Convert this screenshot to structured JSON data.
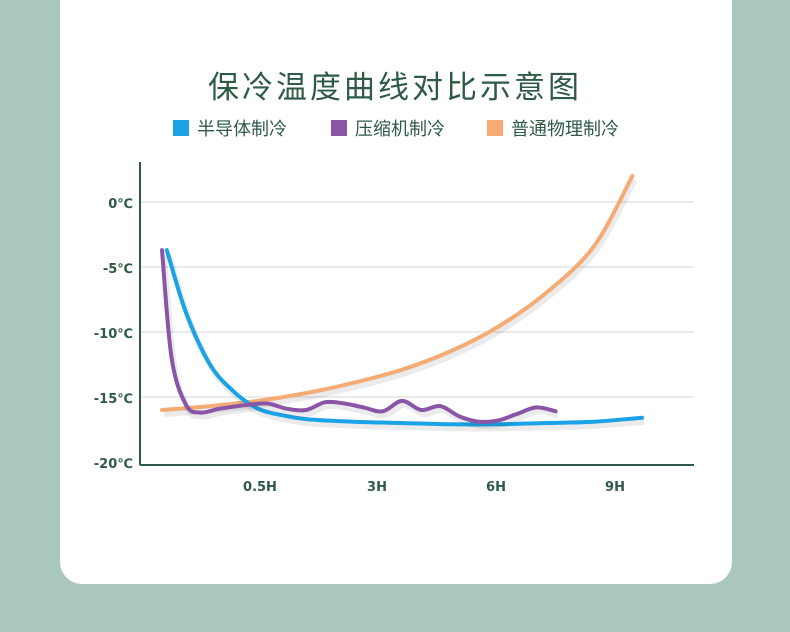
{
  "chart_data": {
    "type": "line",
    "title": "保冷温度曲线对比示意图",
    "y_ticks": [
      "0℃",
      "-5℃",
      "-10℃",
      "-15℃",
      "-20℃"
    ],
    "x_ticks": [
      "0.5H",
      "3H",
      "6H",
      "9H"
    ],
    "ylim": [
      -20,
      3
    ],
    "grid": true,
    "legend_position": "top",
    "series": [
      {
        "name": "半导体制冷",
        "color": "#1aa3e6",
        "points": [
          [
            0.1,
            -3.7
          ],
          [
            0.5,
            -8.5
          ],
          [
            1.0,
            -12.5
          ],
          [
            1.5,
            -14.6
          ],
          [
            2.0,
            -15.9
          ],
          [
            2.5,
            -16.4
          ],
          [
            3.0,
            -16.7
          ],
          [
            4.0,
            -16.9
          ],
          [
            5.0,
            -17.0
          ],
          [
            6.0,
            -17.1
          ],
          [
            7.0,
            -17.1
          ],
          [
            8.0,
            -17.0
          ],
          [
            9.0,
            -16.9
          ],
          [
            10.0,
            -16.6
          ]
        ]
      },
      {
        "name": "压缩机制冷",
        "color": "#8b55a7",
        "points": [
          [
            0.0,
            -3.7
          ],
          [
            0.2,
            -12.0
          ],
          [
            0.5,
            -15.6
          ],
          [
            0.8,
            -16.2
          ],
          [
            1.2,
            -15.9
          ],
          [
            1.8,
            -15.6
          ],
          [
            2.2,
            -15.5
          ],
          [
            2.6,
            -15.9
          ],
          [
            3.0,
            -16.0
          ],
          [
            3.4,
            -15.4
          ],
          [
            3.8,
            -15.5
          ],
          [
            4.2,
            -15.8
          ],
          [
            4.6,
            -16.1
          ],
          [
            5.0,
            -15.3
          ],
          [
            5.4,
            -16.0
          ],
          [
            5.8,
            -15.7
          ],
          [
            6.2,
            -16.5
          ],
          [
            6.6,
            -16.9
          ],
          [
            7.0,
            -16.8
          ],
          [
            7.4,
            -16.3
          ],
          [
            7.8,
            -15.8
          ],
          [
            8.2,
            -16.1
          ]
        ]
      },
      {
        "name": "普通物理制冷",
        "color": "#f4ab76",
        "points": [
          [
            0.0,
            -16.0
          ],
          [
            1.0,
            -15.7
          ],
          [
            2.0,
            -15.3
          ],
          [
            3.0,
            -14.7
          ],
          [
            4.0,
            -13.9
          ],
          [
            5.0,
            -12.9
          ],
          [
            6.0,
            -11.5
          ],
          [
            7.0,
            -9.6
          ],
          [
            8.0,
            -7.0
          ],
          [
            9.0,
            -3.4
          ],
          [
            9.8,
            2.0
          ]
        ]
      }
    ]
  }
}
